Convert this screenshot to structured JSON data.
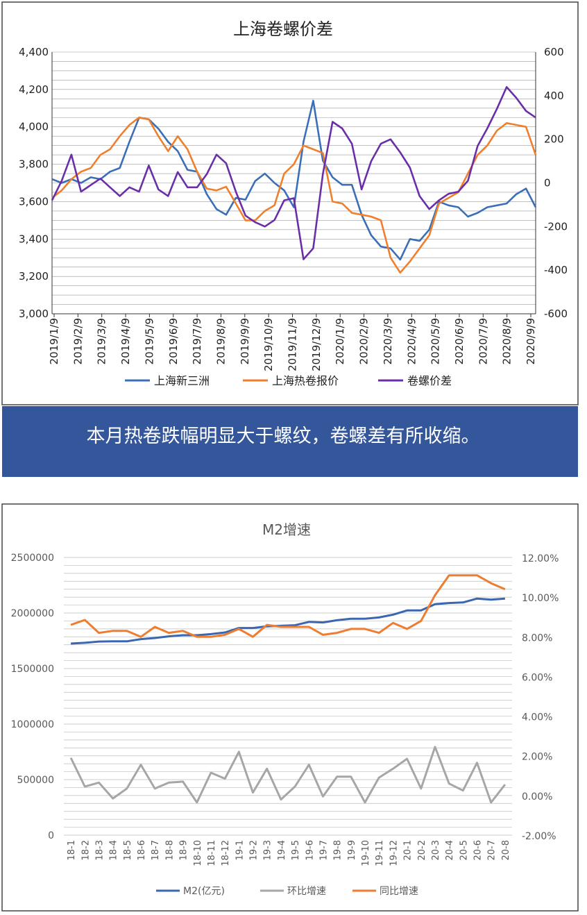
{
  "chart_data": [
    {
      "type": "line",
      "title": "上海卷螺价差",
      "x_ticks": [
        "2019/1/9",
        "2019/2/9",
        "2019/3/9",
        "2019/4/9",
        "2019/5/9",
        "2019/6/9",
        "2019/7/9",
        "2019/8/9",
        "2019/9/9",
        "2019/10/9",
        "2019/11/9",
        "2019/12/9",
        "2020/1/9",
        "2020/2/9",
        "2020/3/9",
        "2020/4/9",
        "2020/5/9",
        "2020/6/9",
        "2020/7/9",
        "2020/8/9",
        "2020/9/9"
      ],
      "y_left_ticks": [
        "3,000",
        "3,200",
        "3,400",
        "3,600",
        "3,800",
        "4,000",
        "4,200",
        "4,400"
      ],
      "y_right_ticks": [
        "-600",
        "-400",
        "-200",
        "0",
        "200",
        "400",
        "600"
      ],
      "ylim_left": [
        3000,
        4400
      ],
      "ylim_right": [
        -600,
        600
      ],
      "grid": true,
      "legend_position": "bottom",
      "series": [
        {
          "name": "上海新三洲",
          "axis": "left",
          "color": "#3a6fb7",
          "values": [
            3720,
            3700,
            3720,
            3700,
            3730,
            3720,
            3760,
            3780,
            3920,
            4050,
            4040,
            3990,
            3920,
            3870,
            3770,
            3760,
            3640,
            3560,
            3530,
            3620,
            3610,
            3710,
            3750,
            3700,
            3660,
            3570,
            3920,
            4140,
            3820,
            3730,
            3690,
            3690,
            3530,
            3420,
            3360,
            3350,
            3290,
            3400,
            3390,
            3450,
            3600,
            3580,
            3570,
            3520,
            3540,
            3570,
            3580,
            3590,
            3640,
            3670,
            3570
          ]
        },
        {
          "name": "上海热卷报价",
          "axis": "left",
          "color": "#f07f2c",
          "values": [
            3620,
            3660,
            3720,
            3760,
            3780,
            3850,
            3880,
            3950,
            4010,
            4050,
            4040,
            3950,
            3870,
            3950,
            3880,
            3760,
            3670,
            3660,
            3680,
            3590,
            3500,
            3500,
            3550,
            3580,
            3750,
            3800,
            3900,
            3880,
            3860,
            3600,
            3590,
            3540,
            3530,
            3520,
            3500,
            3300,
            3220,
            3280,
            3350,
            3420,
            3590,
            3620,
            3650,
            3750,
            3850,
            3900,
            3980,
            4020,
            4010,
            4000,
            3850
          ]
        },
        {
          "name": "卷螺价差",
          "axis": "right",
          "color": "#6a2fa8",
          "values": [
            -80,
            10,
            130,
            -40,
            -10,
            20,
            -20,
            -60,
            -20,
            -40,
            80,
            -30,
            -60,
            50,
            -20,
            -20,
            40,
            130,
            90,
            -40,
            -150,
            -180,
            -200,
            -170,
            -80,
            -70,
            -350,
            -300,
            40,
            280,
            250,
            180,
            -30,
            100,
            180,
            200,
            140,
            70,
            -60,
            -120,
            -80,
            -50,
            -40,
            10,
            170,
            250,
            340,
            440,
            390,
            330,
            300
          ]
        }
      ]
    },
    {
      "type": "line",
      "title": "M2增速",
      "categories": [
        "18-1",
        "18-2",
        "18-3",
        "18-4",
        "18-5",
        "18-6",
        "18-7",
        "18-8",
        "18-9",
        "18-10",
        "18-11",
        "18-12",
        "19-1",
        "19-2",
        "19-3",
        "19-4",
        "19-5",
        "19-6",
        "19-7",
        "19-8",
        "19-9",
        "19-10",
        "19-11",
        "19-12",
        "20-1",
        "20-2",
        "20-3",
        "20-4",
        "20-5",
        "20-6",
        "20-7",
        "20-8"
      ],
      "y_left_ticks": [
        "0",
        "500000",
        "1000000",
        "1500000",
        "2000000",
        "2500000"
      ],
      "y_right_ticks": [
        "-2.00%",
        "0.00%",
        "2.00%",
        "4.00%",
        "6.00%",
        "8.00%",
        "10.00%",
        "12.00%"
      ],
      "ylim_left": [
        0,
        2500000
      ],
      "ylim_right": [
        -0.02,
        0.12
      ],
      "grid": true,
      "legend_position": "bottom",
      "series": [
        {
          "name": "M2(亿元)",
          "axis": "left",
          "color": "#3b66b0",
          "values": [
            1725000,
            1732000,
            1743000,
            1745000,
            1745000,
            1765000,
            1775000,
            1790000,
            1800000,
            1800000,
            1810000,
            1825000,
            1865000,
            1865000,
            1880000,
            1885000,
            1890000,
            1920000,
            1915000,
            1935000,
            1948000,
            1948000,
            1960000,
            1985000,
            2023000,
            2023000,
            2080000,
            2090000,
            2095000,
            2130000,
            2120000,
            2130000
          ]
        },
        {
          "name": "环比增速",
          "axis": "right",
          "color": "#a6a6a6",
          "values": [
            0.019,
            0.0045,
            0.0065,
            -0.0015,
            0.0035,
            0.0155,
            0.0035,
            0.0065,
            0.007,
            -0.0035,
            0.0115,
            0.0085,
            0.022,
            0.0015,
            0.0135,
            -0.002,
            0.0045,
            0.0155,
            -0.0005,
            0.0095,
            0.0095,
            -0.0035,
            0.009,
            0.0135,
            0.0185,
            0.0035,
            0.0245,
            0.006,
            0.0025,
            0.0165,
            -0.0035,
            0.0055
          ]
        },
        {
          "name": "同比增速",
          "axis": "right",
          "color": "#ed7d31",
          "values": [
            0.086,
            0.0885,
            0.082,
            0.083,
            0.083,
            0.08,
            0.085,
            0.082,
            0.083,
            0.08,
            0.08,
            0.081,
            0.084,
            0.08,
            0.086,
            0.085,
            0.085,
            0.085,
            0.081,
            0.082,
            0.084,
            0.084,
            0.082,
            0.087,
            0.084,
            0.088,
            0.101,
            0.111,
            0.111,
            0.111,
            0.107,
            0.104
          ]
        }
      ]
    }
  ],
  "caption": {
    "text": "本月热卷跌幅明显大于螺纹，卷螺差有所收缩。",
    "bg": "#34569a"
  }
}
